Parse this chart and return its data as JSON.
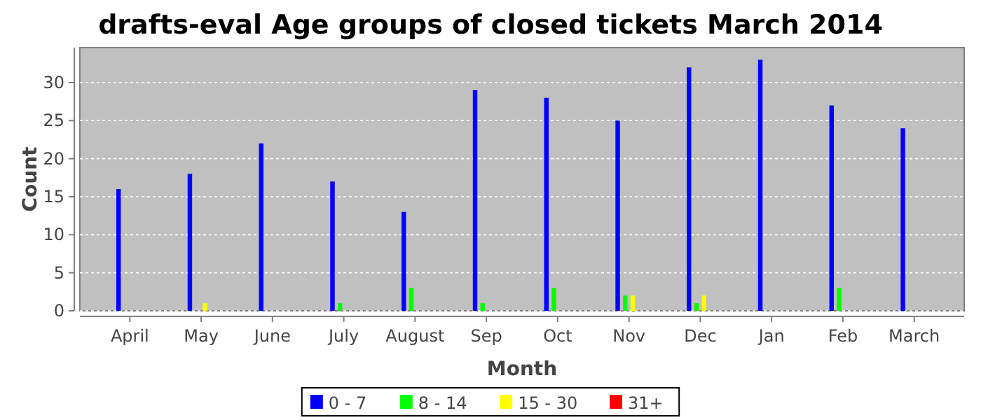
{
  "chart_data": {
    "type": "bar",
    "title": "drafts-eval Age groups of closed tickets March 2014",
    "xlabel": "Month",
    "ylabel": "Count",
    "categories": [
      "April",
      "May",
      "June",
      "July",
      "August",
      "Sep",
      "Oct",
      "Nov",
      "Dec",
      "Jan",
      "Feb",
      "March"
    ],
    "series": [
      {
        "name": "0 - 7",
        "color": "#0000ff",
        "values": [
          16,
          18,
          22,
          17,
          13,
          29,
          28,
          25,
          32,
          33,
          27,
          24
        ]
      },
      {
        "name": "8 - 14",
        "color": "#00ff00",
        "values": [
          0,
          0,
          0,
          1,
          3,
          1,
          3,
          2,
          1,
          0,
          3,
          0
        ]
      },
      {
        "name": "15 - 30",
        "color": "#ffff00",
        "values": [
          0,
          1,
          0,
          0,
          0,
          0,
          0,
          2,
          2,
          0,
          0,
          0
        ]
      },
      {
        "name": "31+",
        "color": "#ff0000",
        "values": [
          0,
          0,
          0,
          0,
          0,
          0,
          0,
          0,
          0,
          0,
          0,
          0
        ]
      }
    ],
    "ylim": [
      0,
      34.6
    ],
    "yticks": [
      0,
      5,
      10,
      15,
      20,
      25,
      30
    ],
    "grid": "y",
    "legend": "bottom"
  }
}
